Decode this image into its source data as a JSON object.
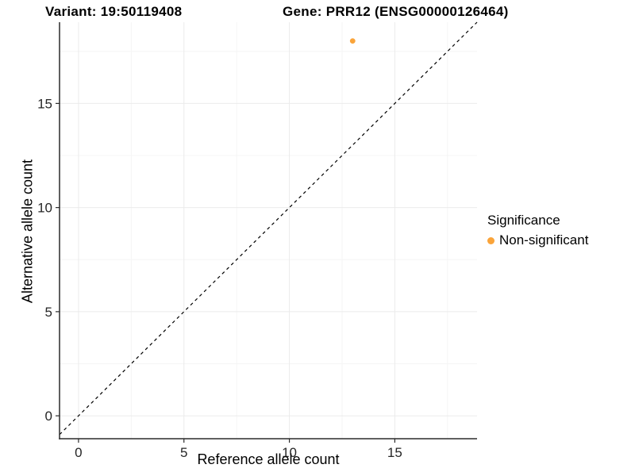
{
  "chart_data": {
    "type": "scatter",
    "title_left": "Variant: 19:50119408",
    "title_right": "Gene: PRR12 (ENSG00000126464)",
    "xlabel": "Reference allele count",
    "ylabel": "Alternative allele count",
    "xlim": [
      -0.9,
      18.9
    ],
    "ylim": [
      -1.1,
      18.9
    ],
    "x_ticks": [
      0,
      5,
      10,
      15
    ],
    "y_ticks": [
      0,
      5,
      10,
      15
    ],
    "x_minor_ticks": [
      2.5,
      7.5,
      12.5,
      17.5
    ],
    "y_minor_ticks": [
      2.5,
      7.5,
      12.5,
      17.5
    ],
    "grid": true,
    "points": [
      {
        "x": 13,
        "y": 18,
        "series": "Non-significant"
      }
    ],
    "identity_line": {
      "style": "dashed",
      "from": [
        -0.9,
        -0.9
      ],
      "to": [
        18.9,
        18.9
      ]
    },
    "legend": {
      "title": "Significance",
      "position": "right",
      "entries": [
        {
          "label": "Non-significant",
          "color": "#FAA43A"
        }
      ]
    },
    "colors": {
      "point": "#FAA43A",
      "axis": "#2b2b2b",
      "tick_text": "#262626",
      "grid_major": "#ebebeb",
      "grid_minor": "#f5f5f5",
      "line": "#000000"
    }
  }
}
